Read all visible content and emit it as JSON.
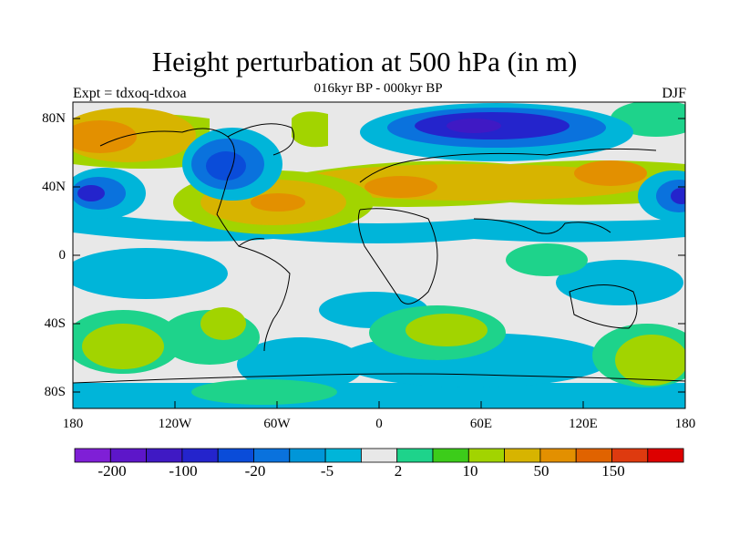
{
  "title": "Height perturbation at 500 hPa (in m)",
  "subtitle": "016kyr BP - 000kyr BP",
  "left_subtitle": "Expt = tdxoq-tdxoa",
  "right_subtitle": "DJF",
  "axes": {
    "y_ticks": [
      "80N",
      "40N",
      "0",
      "40S",
      "80S"
    ],
    "x_ticks": [
      "180",
      "120W",
      "60W",
      "0",
      "60E",
      "120E",
      "180"
    ]
  },
  "colorbar": {
    "colors": [
      "#7f1fd6",
      "#5d16c9",
      "#3f19c4",
      "#2424cc",
      "#0a4cd9",
      "#0a72dd",
      "#0096d8",
      "#00b5d9",
      "#e8e8e8",
      "#1ed38b",
      "#3ccc1a",
      "#a2d400",
      "#d7b400",
      "#e39000",
      "#e06300",
      "#de3a0f",
      "#dd0000"
    ],
    "labels": [
      "-200",
      "-100",
      "-20",
      "-5",
      "2",
      "10",
      "50",
      "150"
    ]
  }
}
